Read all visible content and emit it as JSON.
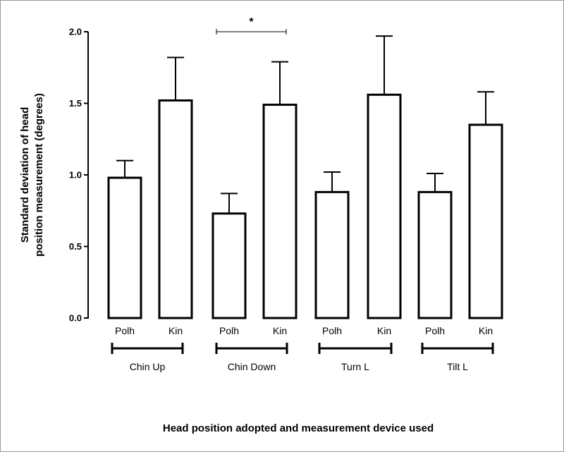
{
  "chart_data": {
    "type": "bar",
    "ylabel_lines": [
      "Standard deviation of head",
      "position measurement (degrees)"
    ],
    "xlabel": "Head position adopted and measurement device used",
    "ylim": [
      0,
      2.0
    ],
    "yticks": [
      "0.0",
      "0.5",
      "1.0",
      "1.5",
      "2.0"
    ],
    "ytick_values": [
      0,
      0.5,
      1.0,
      1.5,
      2.0
    ],
    "categories": [
      "Polh",
      "Kin",
      "Polh",
      "Kin",
      "Polh",
      "Kin",
      "Polh",
      "Kin"
    ],
    "values": [
      0.98,
      1.52,
      0.73,
      1.49,
      0.88,
      1.56,
      0.88,
      1.35
    ],
    "errors": [
      0.12,
      0.3,
      0.14,
      0.3,
      0.14,
      0.41,
      0.13,
      0.23
    ],
    "groups": [
      {
        "label": "Chin Up",
        "bars": [
          0,
          1
        ]
      },
      {
        "label": "Chin Down",
        "bars": [
          2,
          3
        ]
      },
      {
        "label": "Turn L",
        "bars": [
          4,
          5
        ]
      },
      {
        "label": "Tilt L",
        "bars": [
          6,
          7
        ]
      }
    ],
    "significance": [
      {
        "from": 0,
        "to": 3,
        "value": 2.0,
        "label": "*"
      }
    ],
    "grid": false,
    "legend": "none"
  }
}
